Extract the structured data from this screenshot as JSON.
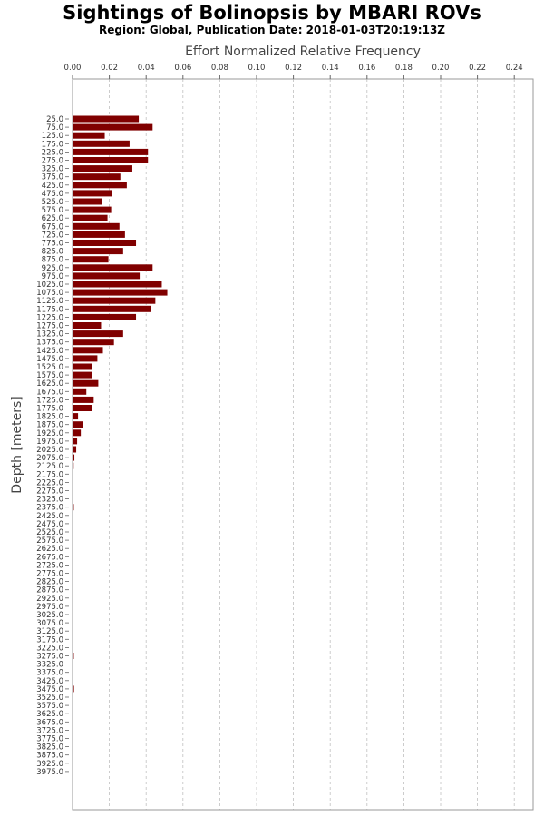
{
  "chart_data": {
    "type": "bar",
    "orientation": "horizontal",
    "title": "Sightings of Bolinopsis by MBARI ROVs",
    "subtitle": "Region: Global, Publication Date: 2018-01-03T20:19:13Z",
    "xlabel": "Effort Normalized Relative Frequency",
    "ylabel": "Depth [meters]",
    "xlim": [
      0,
      0.25
    ],
    "xticks": [
      "0.00",
      "0.02",
      "0.04",
      "0.06",
      "0.08",
      "0.10",
      "0.12",
      "0.14",
      "0.16",
      "0.18",
      "0.20",
      "0.22",
      "0.24"
    ],
    "grid": true,
    "bar_color": "#800000",
    "categories": [
      "25.0",
      "75.0",
      "125.0",
      "175.0",
      "225.0",
      "275.0",
      "325.0",
      "375.0",
      "425.0",
      "475.0",
      "525.0",
      "575.0",
      "625.0",
      "675.0",
      "725.0",
      "775.0",
      "825.0",
      "875.0",
      "925.0",
      "975.0",
      "1025.0",
      "1075.0",
      "1125.0",
      "1175.0",
      "1225.0",
      "1275.0",
      "1325.0",
      "1375.0",
      "1425.0",
      "1475.0",
      "1525.0",
      "1575.0",
      "1625.0",
      "1675.0",
      "1725.0",
      "1775.0",
      "1825.0",
      "1875.0",
      "1925.0",
      "1975.0",
      "2025.0",
      "2075.0",
      "2125.0",
      "2175.0",
      "2225.0",
      "2275.0",
      "2325.0",
      "2375.0",
      "2425.0",
      "2475.0",
      "2525.0",
      "2575.0",
      "2625.0",
      "2675.0",
      "2725.0",
      "2775.0",
      "2825.0",
      "2875.0",
      "2925.0",
      "2975.0",
      "3025.0",
      "3075.0",
      "3125.0",
      "3175.0",
      "3225.0",
      "3275.0",
      "3325.0",
      "3375.0",
      "3425.0",
      "3475.0",
      "3525.0",
      "3575.0",
      "3625.0",
      "3675.0",
      "3725.0",
      "3775.0",
      "3825.0",
      "3875.0",
      "3925.0",
      "3975.0"
    ],
    "values": [
      0.036,
      0.0435,
      0.0175,
      0.031,
      0.041,
      0.041,
      0.0325,
      0.026,
      0.0295,
      0.0215,
      0.016,
      0.021,
      0.019,
      0.0255,
      0.0285,
      0.0345,
      0.0275,
      0.0195,
      0.0435,
      0.0365,
      0.0485,
      0.0515,
      0.045,
      0.0425,
      0.0345,
      0.0155,
      0.0275,
      0.0225,
      0.0165,
      0.0135,
      0.0105,
      0.0105,
      0.014,
      0.0075,
      0.0115,
      0.0105,
      0.003,
      0.0055,
      0.0045,
      0.0025,
      0.002,
      0.001,
      0.0006,
      0.0004,
      0.0004,
      0.0003,
      0.0003,
      0.0007,
      0.0003,
      0.0003,
      0.0003,
      0.0003,
      0.0003,
      0.0003,
      0.0003,
      0.0003,
      0.0003,
      0.0003,
      0.0003,
      0.0003,
      0.0003,
      0.0003,
      0.0003,
      0.0003,
      0.0003,
      0.0007,
      0.0003,
      0.0003,
      0.0003,
      0.0008,
      0.0003,
      0.0003,
      0.0003,
      0.0003,
      0.0003,
      0.0003,
      0.0003,
      0.0003,
      0.0003,
      0.0003
    ]
  }
}
